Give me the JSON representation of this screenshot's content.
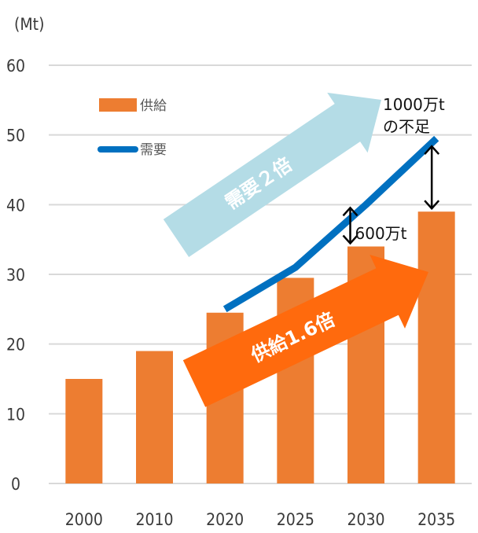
{
  "chart_data": {
    "type": "bar",
    "unit_label": "(Mt)",
    "categories": [
      "2000",
      "2010",
      "2020",
      "2025",
      "2030",
      "2035"
    ],
    "series": [
      {
        "name": "供給",
        "type": "bar",
        "values": [
          15,
          19,
          24.5,
          29.5,
          34,
          39
        ],
        "color": "#ED7D31"
      },
      {
        "name": "需要",
        "type": "line",
        "x": [
          "2020",
          "2025",
          "2030",
          "2035"
        ],
        "values": [
          25,
          31,
          40,
          49.5
        ],
        "color": "#0070C0"
      }
    ],
    "ylim": [
      0,
      60
    ],
    "yticks": [
      0,
      10,
      20,
      30,
      40,
      50,
      60
    ],
    "grid": true,
    "legend_position": "top-left",
    "annotations": {
      "gap_2030": "600万t",
      "gap_2035_line1": "1000万t",
      "gap_2035_line2": "の不足",
      "demand_arrow": "需要２倍",
      "supply_arrow": "供給1.6倍"
    },
    "arrow_colors": {
      "demand": "#B4DCE6",
      "supply": "#FF6A0D"
    }
  }
}
